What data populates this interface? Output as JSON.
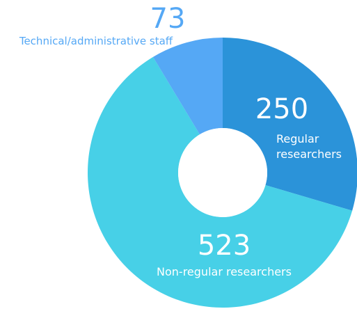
{
  "chart_data": {
    "type": "pie",
    "variant": "donut",
    "title": "",
    "slices": [
      {
        "name": "Regular researchers",
        "name_lines": [
          "Regular",
          "researchers"
        ],
        "value": 250,
        "value_label": "250",
        "color": "#2b93d9"
      },
      {
        "name": "Non-regular researchers",
        "name_lines": [
          "Non-regular researchers"
        ],
        "value": 523,
        "value_label": "523",
        "color": "#47d0e7"
      },
      {
        "name": "Technical/administrative staff",
        "name_lines": [
          "Technical/administrative staff"
        ],
        "value": 73,
        "value_label": "73",
        "color": "#55a8f5"
      }
    ],
    "label_colors": {
      "inside": "#ffffff",
      "outside": "#55a8f5"
    },
    "start_angle": "12 o'clock",
    "direction": "clockwise"
  }
}
